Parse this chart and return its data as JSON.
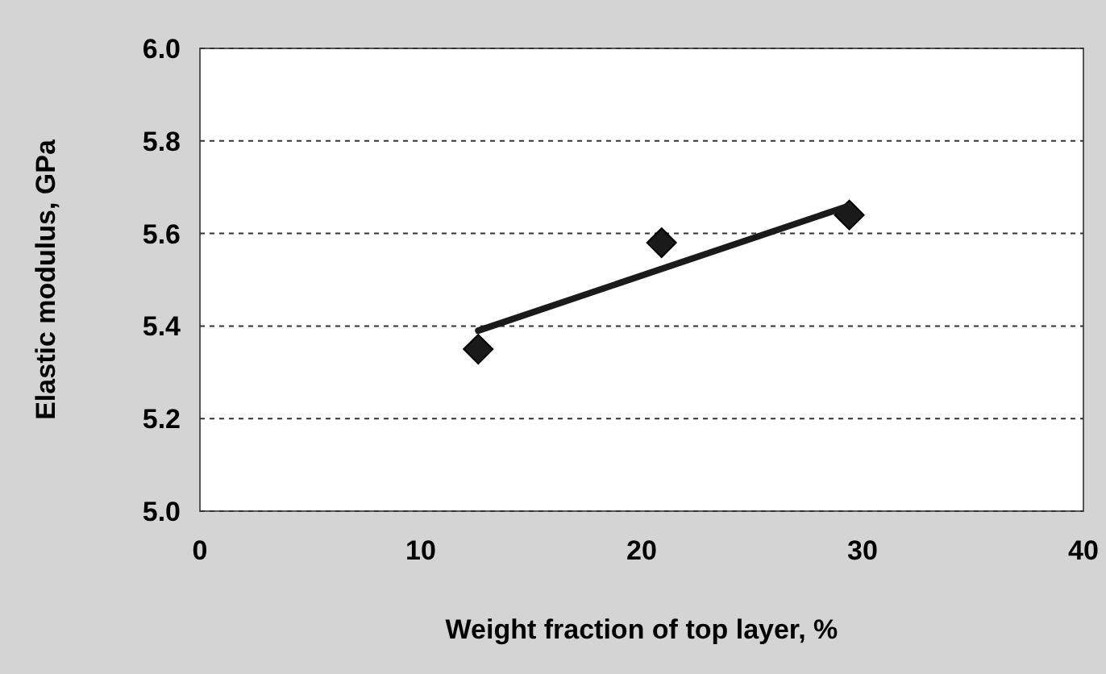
{
  "chart_data": {
    "type": "scatter",
    "xlabel": "Weight fraction of top layer, %",
    "ylabel": "Elastic modulus, GPa",
    "xlim": [
      0,
      40
    ],
    "xticks": [
      0,
      10,
      20,
      30,
      40
    ],
    "ylim": [
      5.0,
      6.0
    ],
    "yticks": [
      {
        "value": 5.0,
        "label": "5.0"
      },
      {
        "value": 5.2,
        "label": "5.2"
      },
      {
        "value": 5.4,
        "label": "5.4"
      },
      {
        "value": 5.6,
        "label": "5.6"
      },
      {
        "value": 5.8,
        "label": "5.8"
      },
      {
        "value": 6.0,
        "label": "6.0"
      }
    ],
    "grid": "y",
    "marker": "diamond",
    "series": [
      {
        "color": "#1a1a1a",
        "x": [
          12.6,
          20.9,
          29.4
        ],
        "values": [
          5.35,
          5.58,
          5.64
        ]
      },
      {
        "type": "line",
        "color": "#1a1a1a",
        "line_style": "solid",
        "marker": "none",
        "x": [
          12.6,
          29.4
        ],
        "values": [
          5.39,
          5.66
        ]
      }
    ]
  }
}
